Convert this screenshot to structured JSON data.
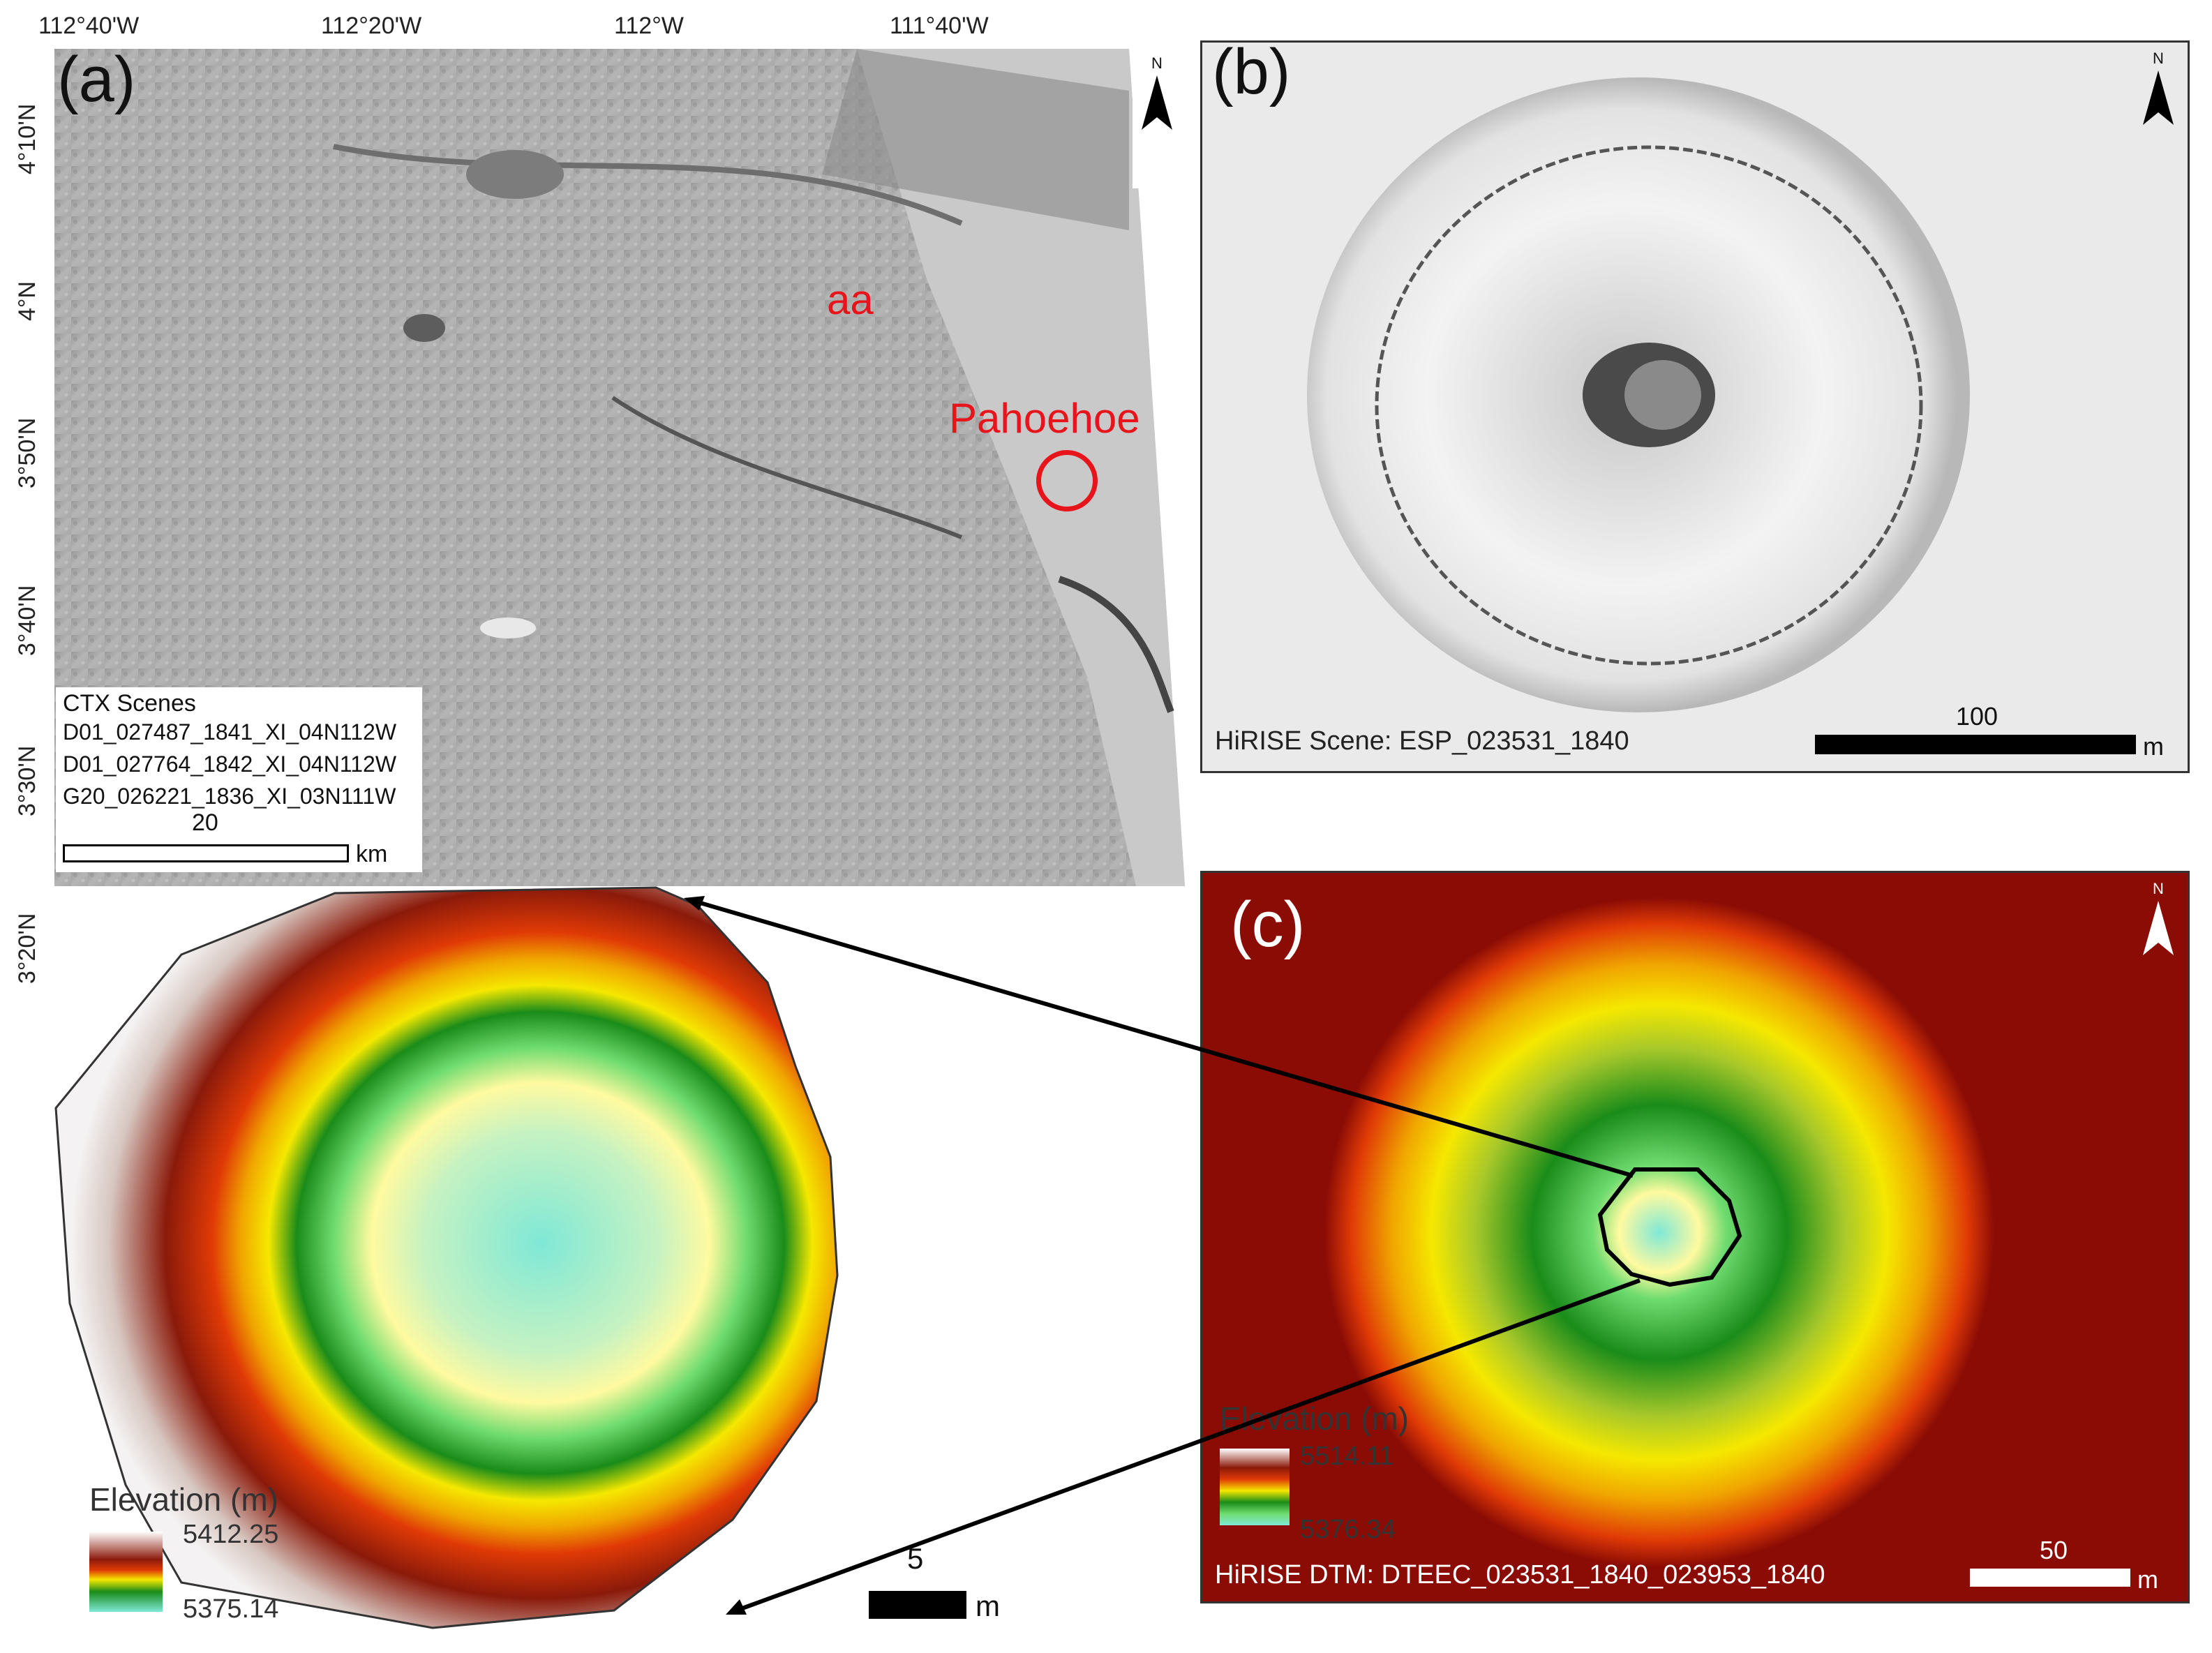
{
  "panel_a": {
    "label": "(a)",
    "top_ticks": [
      "112°40'W",
      "112°20'W",
      "112°W",
      "111°40'W"
    ],
    "left_ticks": [
      "4°10'N",
      "4°N",
      "3°50'N",
      "3°40'N",
      "3°30'N",
      "3°20'N"
    ],
    "annotations": {
      "aa": "aa",
      "pahoehoe": "Pahoehoe"
    },
    "scenes_title": "CTX Scenes",
    "scenes": [
      "D01_027487_1841_XI_04N112W",
      "D01_027764_1842_XI_04N112W",
      "G20_026221_1836_XI_03N111W"
    ],
    "scale_value": "20",
    "scale_unit": "km",
    "north": "N",
    "accent_color": "#e8141b"
  },
  "panel_b": {
    "label": "(b)",
    "scene": "HiRISE Scene: ESP_023531_1840",
    "scale_value": "100",
    "scale_unit": "m",
    "north": "N"
  },
  "panel_c": {
    "label": "(c)",
    "legend_title": "Elevation (m)",
    "legend_max": "5514.11",
    "legend_min": "5376.34",
    "dtm": "HiRISE DTM: DTEEC_023531_1840_023953_1840",
    "scale_value": "50",
    "scale_unit": "m",
    "north": "N"
  },
  "panel_d": {
    "legend_title": "Elevation (m)",
    "legend_max": "5412.25",
    "legend_min": "5375.14",
    "scale_value": "5",
    "scale_unit": "m"
  },
  "colors": {
    "elev_ramp": [
      "#ffffff",
      "#8b1a0a",
      "#e03a06",
      "#f0a500",
      "#f5e800",
      "#1a8c1a",
      "#6fdc6f",
      "#fffaa0",
      "#7fe8d6"
    ]
  }
}
